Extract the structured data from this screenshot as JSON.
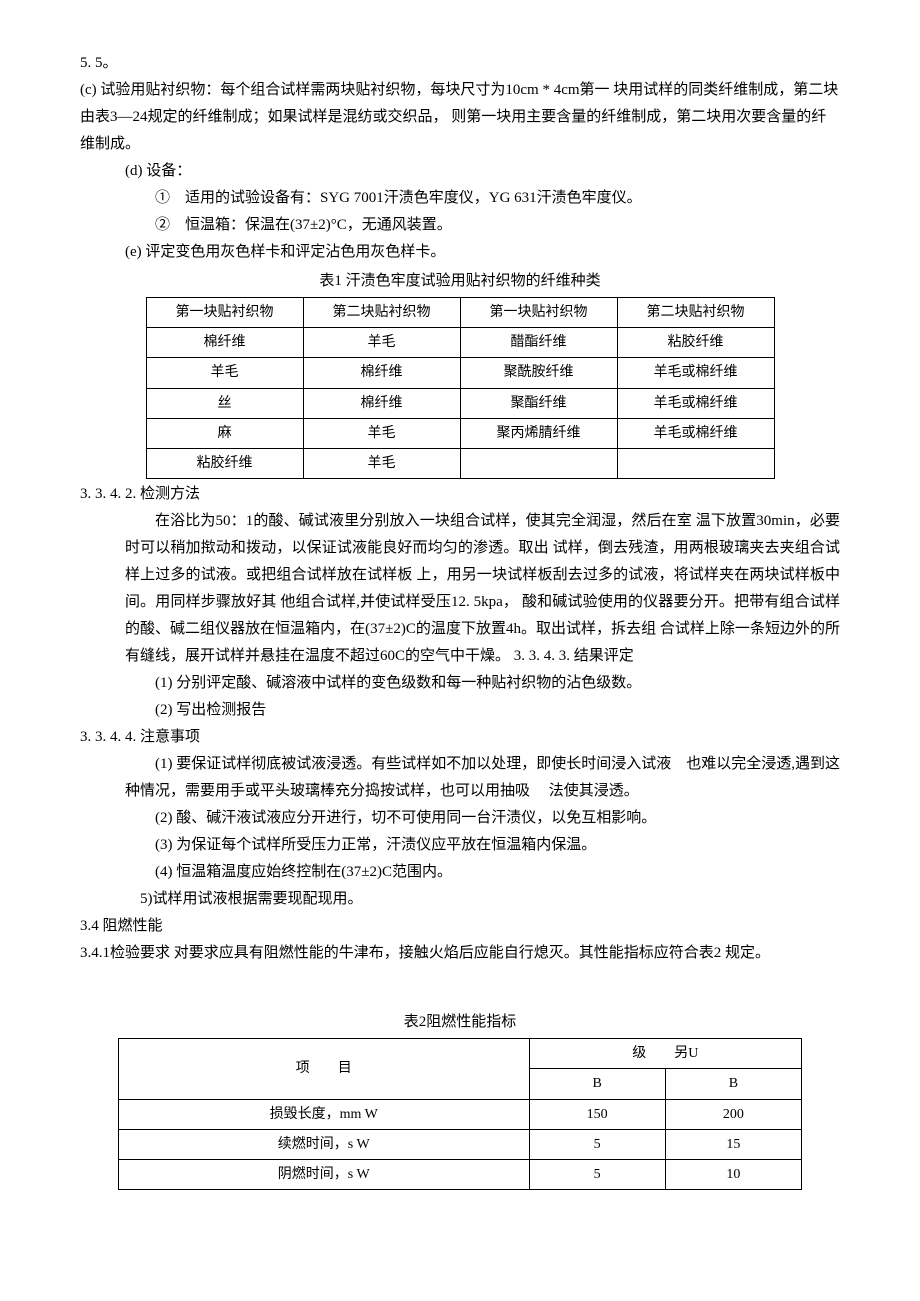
{
  "p_55": "5. 5。",
  "p_c": "(c) 试验用贴衬织物：每个组合试样需两块贴衬织物，每块尺寸为10cm * 4cm第一 块用试样的同类纤维制成，第二块由表3—24规定的纤维制成；如果试样是混纺或交织品， 则第一块用主要含量的纤维制成，第二块用次要含量的纤维制成。",
  "p_d": "(d) 设备：",
  "p_d1": "① 适用的试验设备有：SYG 7001汗渍色牢度仪，YG 631汗渍色牢度仪。",
  "p_d2": "② 恒温箱：保温在(37±2)°C，无通风装置。",
  "p_e": "(e) 评定变色用灰色样卡和评定沾色用灰色样卡。",
  "table1_caption": "表1 汗渍色牢度试验用贴衬织物的纤维种类",
  "table1": {
    "header": [
      "第一块贴衬织物",
      "第二块贴衬织物",
      "第一块贴衬织物",
      "第二块贴衬织物"
    ],
    "rows": [
      [
        "棉纤维",
        "羊毛",
        "醋酯纤维",
        "粘胶纤维"
      ],
      [
        "羊毛",
        "棉纤维",
        "聚酰胺纤维",
        "羊毛或棉纤维"
      ],
      [
        "丝",
        "棉纤维",
        "聚酯纤维",
        "羊毛或棉纤维"
      ],
      [
        "麻",
        "羊毛",
        "聚丙烯腈纤维",
        "羊毛或棉纤维"
      ],
      [
        "粘胶纤维",
        "羊毛",
        "",
        ""
      ]
    ]
  },
  "s_3342": "3. 3. 4. 2. 检测方法",
  "p_bath": "在浴比为50：1的酸、碱试液里分别放入一块组合试样，使其完全润湿，然后在室 温下放置30min，必要时可以稍加揿动和拨动，以保证试液能良好而均匀的渗透。取出 试样，倒去残渣，用两根玻璃夹去夹组合试样上过多的试液。或把组合试样放在试样板 上，用另一块试样板刮去过多的试液，将试样夹在两块试样板中间。用同样步骤放好其 他组合试样,并使试样受压12. 5kpa， 酸和碱试验使用的仪器要分开。把带有组合试样 的酸、碱二组仪器放在恒温箱内，在(37±2)C的温度下放置4h。取出试样，拆去组 合试样上除一条短边外的所有缝线，展开试样并悬挂在温度不超过60C的空气中干燥。 3. 3. 4. 3. 结果评定",
  "p_r1": "(1) 分别评定酸、碱溶液中试样的变色级数和每一种贴衬织物的沾色级数。",
  "p_r2": "(2) 写出检测报告",
  "s_3344": "3. 3. 4. 4. 注意事项",
  "p_n1": "(1) 要保证试样彻底被试液浸透。有些试样如不加以处理，即使长时间浸入试液 也难以完全浸透,遇到这种情况，需要用手或平头玻璃棒充分捣按试样，也可以用抽吸  法使其浸透。",
  "p_n2": "(2) 酸、碱汗液试液应分开进行，切不可使用同一台汗渍仪，以免互相影响。",
  "p_n3": "(3) 为保证每个试样所受压力正常，汗渍仪应平放在恒温箱内保温。",
  "p_n4": "(4) 恒温箱温度应始终控制在(37±2)C范围内。",
  "p_n5": "5)试样用试液根据需要现配现用。",
  "s_34": "3.4 阻燃性能",
  "p_341": "3.4.1检验要求 对要求应具有阻燃性能的牛津布，接触火焰后应能自行熄灭。其性能指标应符合表2 规定。",
  "table2_caption": "表2阻燃性能指标",
  "table2": {
    "col_item": "项  目",
    "col_level": "级  另U",
    "sub_b1": "B",
    "sub_b2": "B",
    "rows": [
      {
        "label": "损毁长度，mm W",
        "v1": "150",
        "v2": "200"
      },
      {
        "label": "续燃时间，s W",
        "v1": "5",
        "v2": "15"
      },
      {
        "label": "阴燃时间，s W",
        "v1": "5",
        "v2": "10"
      }
    ]
  }
}
